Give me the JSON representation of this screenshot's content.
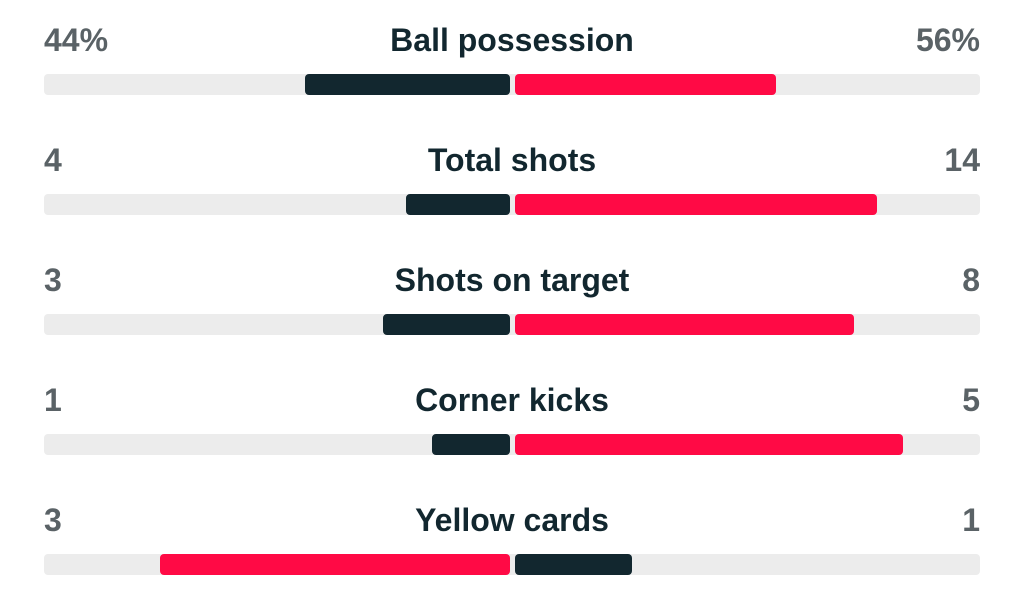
{
  "colors": {
    "dark": "#12272f",
    "red": "#ff0a45",
    "track": "#ececec",
    "value_text": "#5a6266"
  },
  "stats": [
    {
      "label": "Ball possession",
      "home_text": "44%",
      "away_text": "56%",
      "home_value": 44,
      "away_value": 56,
      "leader": "away"
    },
    {
      "label": "Total shots",
      "home_text": "4",
      "away_text": "14",
      "home_value": 4,
      "away_value": 14,
      "leader": "away"
    },
    {
      "label": "Shots on target",
      "home_text": "3",
      "away_text": "8",
      "home_value": 3,
      "away_value": 8,
      "leader": "away"
    },
    {
      "label": "Corner kicks",
      "home_text": "1",
      "away_text": "5",
      "home_value": 1,
      "away_value": 5,
      "leader": "away"
    },
    {
      "label": "Yellow cards",
      "home_text": "3",
      "away_text": "1",
      "home_value": 3,
      "away_value": 1,
      "leader": "home"
    }
  ]
}
